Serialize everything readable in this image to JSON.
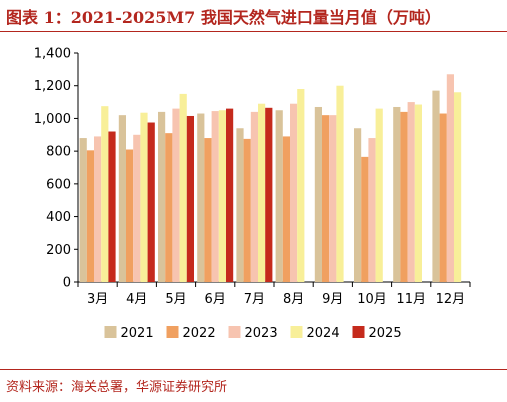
{
  "title": "图表 1：2021-2025M7 我国天然气进口量当月值（万吨）",
  "source": "资料来源：海关总署，华源证券研究所",
  "chart_data": {
    "type": "bar",
    "categories": [
      "3月",
      "4月",
      "5月",
      "6月",
      "7月",
      "8月",
      "9月",
      "10月",
      "11月",
      "12月"
    ],
    "ylim": [
      0,
      1400
    ],
    "yticks": [
      0,
      200,
      400,
      600,
      800,
      1000,
      1200,
      1400
    ],
    "ytick_labels": [
      "0",
      "200",
      "400",
      "600",
      "800",
      "1,000",
      "1,200",
      "1,400"
    ],
    "grid": false,
    "legend_position": "bottom",
    "series": [
      {
        "name": "2021",
        "color": "#d9c39a",
        "values": [
          880,
          1020,
          1040,
          1030,
          940,
          1050,
          1070,
          940,
          1070,
          1170
        ]
      },
      {
        "name": "2022",
        "color": "#f0a060",
        "values": [
          805,
          810,
          910,
          880,
          875,
          890,
          1020,
          765,
          1040,
          1030
        ]
      },
      {
        "name": "2023",
        "color": "#f7c4b0",
        "values": [
          890,
          900,
          1060,
          1045,
          1040,
          1090,
          1020,
          880,
          1100,
          1270
        ]
      },
      {
        "name": "2024",
        "color": "#f8ef99",
        "values": [
          1075,
          1035,
          1150,
          1050,
          1090,
          1180,
          1200,
          1060,
          1085,
          1160
        ]
      },
      {
        "name": "2025",
        "color": "#c52a1c",
        "values": [
          920,
          975,
          1015,
          1060,
          1065,
          null,
          null,
          null,
          null,
          null
        ]
      }
    ]
  }
}
